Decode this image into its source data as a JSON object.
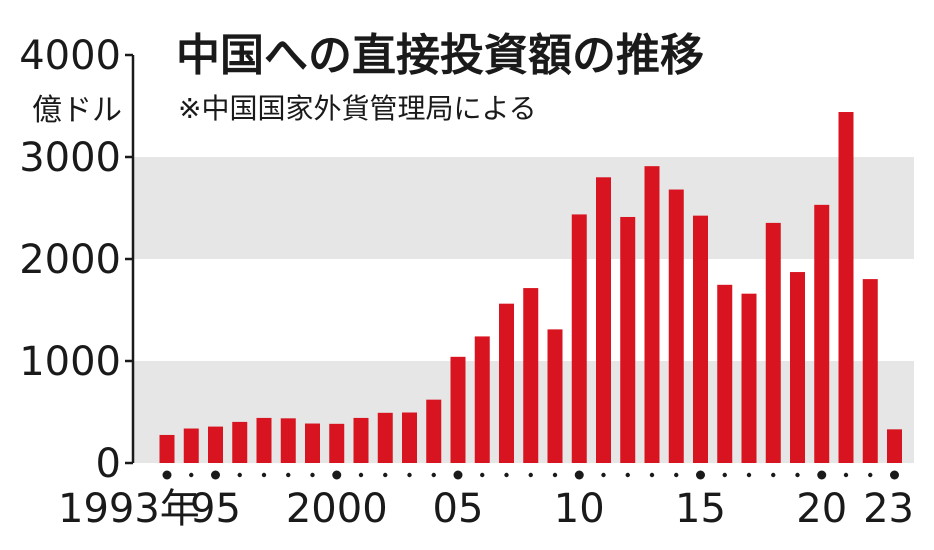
{
  "chart_data": {
    "type": "bar",
    "title": "中国への直接投資額の推移",
    "subtitle": "※中国国家外貨管理局による",
    "ylabel": "億ドル",
    "ylim": [
      0,
      4000
    ],
    "yticks": [
      "0",
      "1000",
      "2000",
      "3000",
      "4000"
    ],
    "grid_bands": true,
    "categories": [
      "1993",
      "1994",
      "1995",
      "1996",
      "1997",
      "1998",
      "1999",
      "2000",
      "2001",
      "2002",
      "2003",
      "2004",
      "2005",
      "2006",
      "2007",
      "2008",
      "2009",
      "2010",
      "2011",
      "2012",
      "2013",
      "2014",
      "2015",
      "2016",
      "2017",
      "2018",
      "2019",
      "2020",
      "2021",
      "2022",
      "2023"
    ],
    "x_tick_labels": [
      {
        "year": "1993",
        "label": "1993年"
      },
      {
        "year": "1995",
        "label": "95"
      },
      {
        "year": "2000",
        "label": "2000"
      },
      {
        "year": "2005",
        "label": "05"
      },
      {
        "year": "2010",
        "label": "10"
      },
      {
        "year": "2015",
        "label": "15"
      },
      {
        "year": "2020",
        "label": "20"
      },
      {
        "year": "2023",
        "label": "23"
      }
    ],
    "major_dot_years": [
      "1993",
      "1995",
      "2000",
      "2005",
      "2010",
      "2015",
      "2020",
      "2023"
    ],
    "values": [
      275,
      338,
      357,
      403,
      442,
      438,
      387,
      384,
      442,
      492,
      495,
      621,
      1041,
      1241,
      1562,
      1715,
      1310,
      2437,
      2801,
      2412,
      2910,
      2681,
      2425,
      1747,
      1660,
      2354,
      1872,
      2531,
      3441,
      1803,
      330
    ],
    "bar_color": "#d7141f",
    "band_color": "#e6e6e6"
  }
}
